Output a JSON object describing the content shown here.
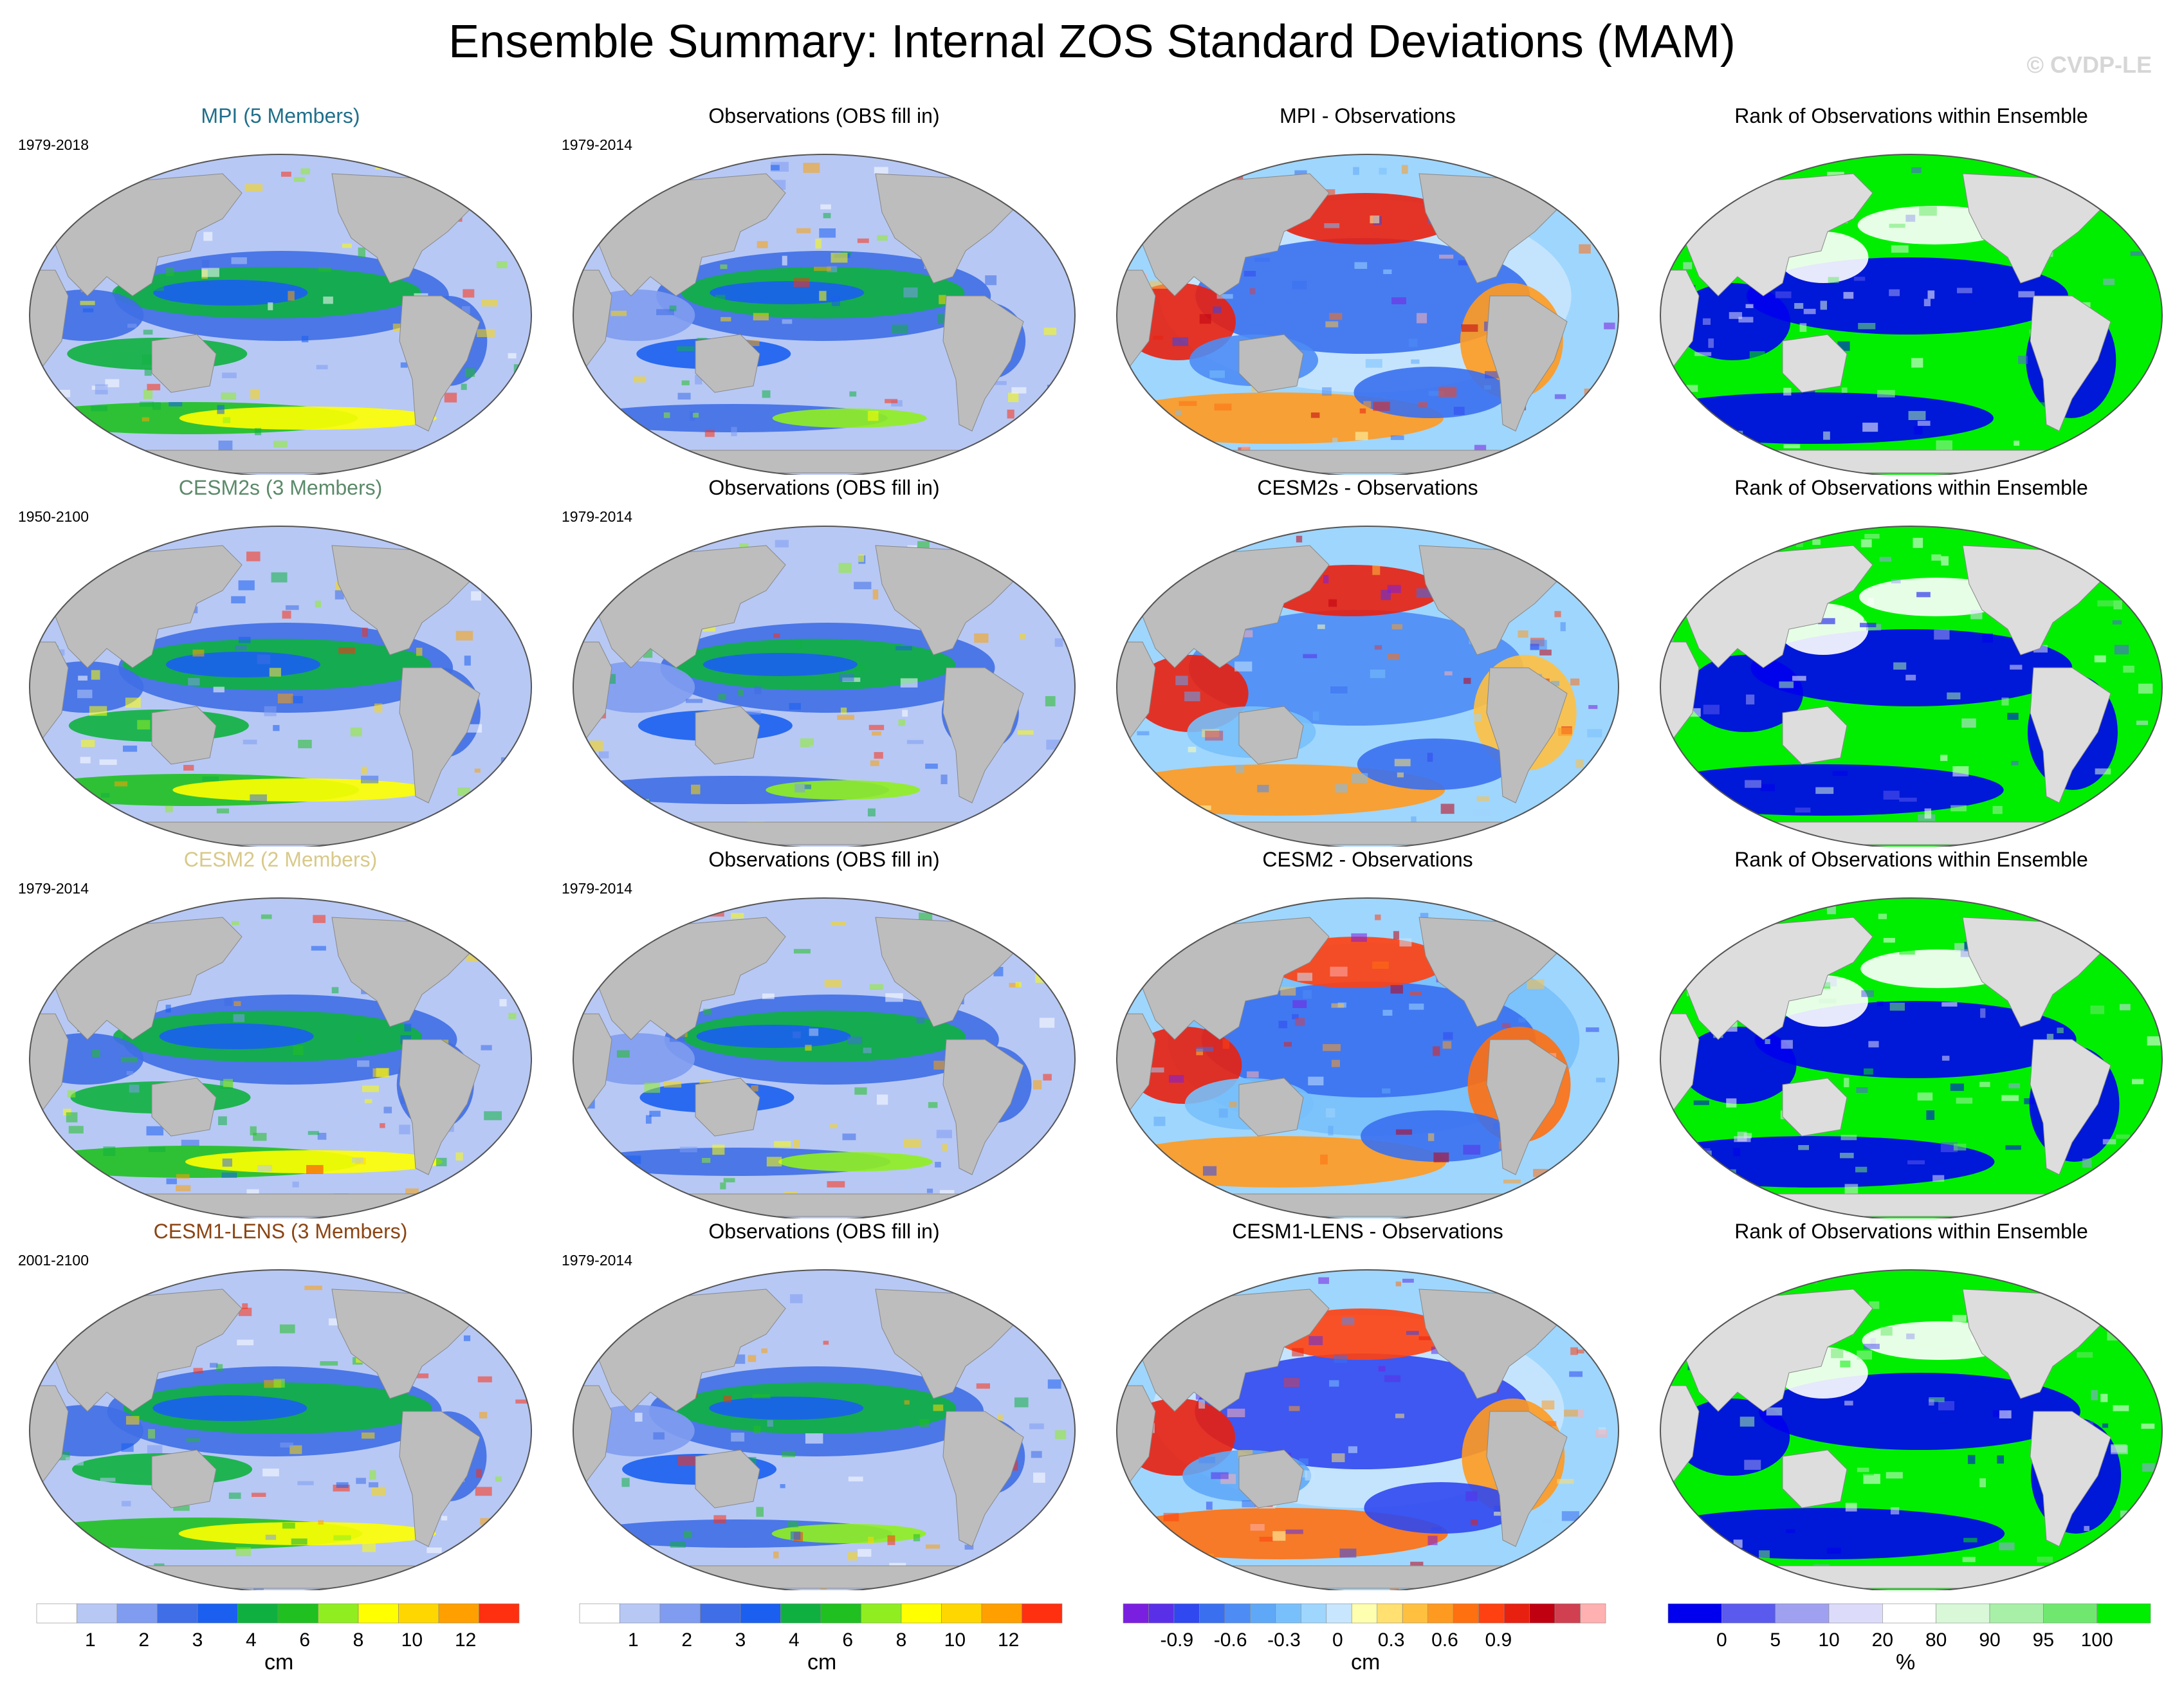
{
  "title": "Ensemble Summary: Internal ZOS Standard Deviations (MAM)",
  "watermark": "© CVDP-LE",
  "colors": {
    "land": "#bdbdbd",
    "land_light": "#dddddd",
    "ocean_low": "#b7c8f5"
  },
  "rows": [
    {
      "model": {
        "title": "MPI (5 Members)",
        "title_color": "#1f6f8b",
        "period": "1979-2018"
      },
      "obs": {
        "title": "Observations (OBS fill in)",
        "period": "1979-2014"
      },
      "diff": {
        "title": "MPI - Observations"
      },
      "rank": {
        "title": "Rank of Observations within Ensemble"
      }
    },
    {
      "model": {
        "title": "CESM2s (3 Members)",
        "title_color": "#5b8a6a",
        "period": "1950-2100"
      },
      "obs": {
        "title": "Observations (OBS fill in)",
        "period": "1979-2014"
      },
      "diff": {
        "title": "CESM2s - Observations"
      },
      "rank": {
        "title": "Rank of Observations within Ensemble"
      }
    },
    {
      "model": {
        "title": "CESM2 (2 Members)",
        "title_color": "#d8c98a",
        "period": "1979-2014"
      },
      "obs": {
        "title": "Observations (OBS fill in)",
        "period": "1979-2014"
      },
      "diff": {
        "title": "CESM2 - Observations"
      },
      "rank": {
        "title": "Rank of Observations within Ensemble"
      }
    },
    {
      "model": {
        "title": "CESM1-LENS (3 Members)",
        "title_color": "#8b4513",
        "period": "2001-2100"
      },
      "obs": {
        "title": "Observations (OBS fill in)",
        "period": "1979-2014"
      },
      "diff": {
        "title": "CESM1-LENS - Observations"
      },
      "rank": {
        "title": "Rank of Observations within Ensemble"
      }
    }
  ],
  "colorbars": [
    {
      "name": "sd-model",
      "unit": "cm",
      "colors": [
        "#ffffff",
        "#b7c8f5",
        "#7f9cf0",
        "#3f6ee6",
        "#1a5ff0",
        "#10b040",
        "#20c020",
        "#90ee20",
        "#ffff00",
        "#ffd700",
        "#ffa000",
        "#ff3010"
      ],
      "ticks": [
        "1",
        "2",
        "3",
        "4",
        "6",
        "8",
        "10",
        "12"
      ]
    },
    {
      "name": "sd-obs",
      "unit": "cm",
      "colors": [
        "#ffffff",
        "#b7c8f5",
        "#7f9cf0",
        "#3f6ee6",
        "#1a5ff0",
        "#10b040",
        "#20c020",
        "#90ee20",
        "#ffff00",
        "#ffd700",
        "#ffa000",
        "#ff3010"
      ],
      "ticks": [
        "1",
        "2",
        "3",
        "4",
        "6",
        "8",
        "10",
        "12"
      ]
    },
    {
      "name": "difference",
      "unit": "cm",
      "colors": [
        "#7a1fe0",
        "#5a2fe8",
        "#3048f0",
        "#3a70f0",
        "#4d8cf5",
        "#5fa8f8",
        "#78c0fb",
        "#9fd6fd",
        "#c8e6fe",
        "#ffffb0",
        "#ffe070",
        "#ffc040",
        "#ff9a20",
        "#ff7010",
        "#ff4010",
        "#e82010",
        "#c00010",
        "#d04050",
        "#ffb0b0"
      ],
      "ticks": [
        "-0.9",
        "-0.6",
        "-0.3",
        "0",
        "0.3",
        "0.6",
        "0.9"
      ]
    },
    {
      "name": "rank",
      "unit": "%",
      "colors": [
        "#0000ee",
        "#5a5aee",
        "#a0a0f0",
        "#dcdcfa",
        "#ffffff",
        "#d8f8d8",
        "#a8f0a8",
        "#70e870",
        "#00ee00"
      ],
      "ticks": [
        "0",
        "5",
        "10",
        "20",
        "80",
        "90",
        "95",
        "100"
      ]
    }
  ]
}
